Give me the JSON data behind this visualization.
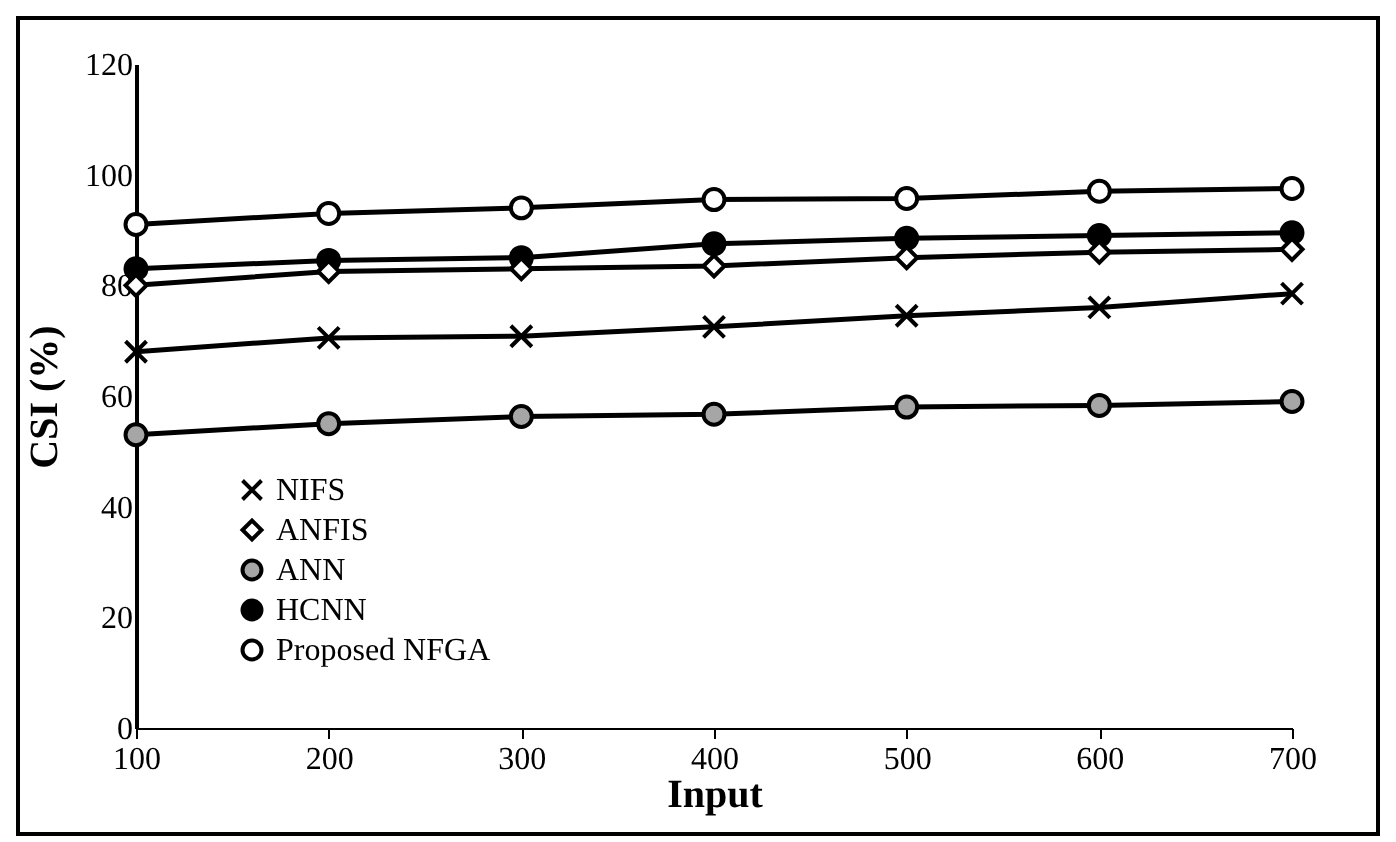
{
  "chart_data": {
    "type": "line",
    "xlabel": "Input",
    "ylabel": "CSI (%)",
    "x": [
      100,
      200,
      300,
      400,
      500,
      600,
      700
    ],
    "xlim": [
      100,
      700
    ],
    "xticks": [
      100,
      200,
      300,
      400,
      500,
      600,
      700
    ],
    "ylim": [
      0,
      120
    ],
    "yticks": [
      0,
      20,
      40,
      60,
      80,
      100,
      120
    ],
    "grid": false,
    "legend": "bottom left",
    "series": [
      {
        "name": "NIFS",
        "color": "#000000",
        "marker": "cross",
        "values": [
          68,
          70.5,
          70.8,
          72.5,
          74.5,
          76,
          78.5
        ]
      },
      {
        "name": "ANFIS",
        "color": "#ffffff",
        "marker": "diamond",
        "values": [
          80,
          82.5,
          83,
          83.5,
          85,
          86,
          86.5
        ]
      },
      {
        "name": "ANN",
        "color": "#a6a6a6",
        "marker": "circle",
        "values": [
          53,
          55,
          56.3,
          56.7,
          58,
          58.3,
          59
        ]
      },
      {
        "name": "HCNN",
        "color": "#000000",
        "marker": "circle",
        "values": [
          83,
          84.5,
          85,
          87.5,
          88.5,
          89,
          89.5
        ]
      },
      {
        "name": "Proposed NFGA",
        "color": "#ffffff",
        "marker": "circle",
        "values": [
          91,
          93,
          94,
          95.5,
          95.7,
          97,
          97.5
        ]
      }
    ]
  }
}
